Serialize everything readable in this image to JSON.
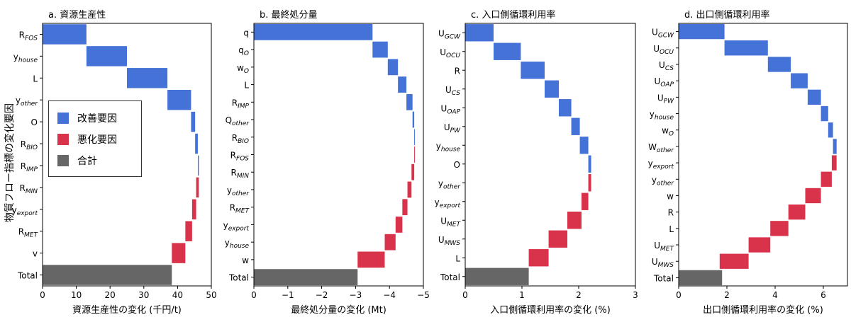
{
  "y_axis_label": "物質フロー指標の変化要因",
  "legend": [
    {
      "label": "改善要因",
      "color": "#4472d6"
    },
    {
      "label": "悪化要因",
      "color": "#d9334b"
    },
    {
      "label": "合計",
      "color": "#666666"
    }
  ],
  "chart_data": [
    {
      "type": "waterfall",
      "title": "a. 資源生産性",
      "xlabel": "資源生産性の変化 (千円/t)",
      "xlim": [
        0,
        50
      ],
      "xticks": [
        0,
        10,
        20,
        30,
        40,
        50
      ],
      "xtick_labels": [
        "0",
        "10",
        "20",
        "30",
        "40",
        "50"
      ],
      "factors": [
        {
          "label": "R",
          "sub": "FOS",
          "value": 13.0,
          "kind": "improve"
        },
        {
          "label": "y",
          "sub": "house",
          "value": 12.0,
          "kind": "improve"
        },
        {
          "label": "L",
          "sub": "",
          "value": 12.0,
          "kind": "improve"
        },
        {
          "label": "y",
          "sub": "other",
          "value": 7.0,
          "kind": "improve"
        },
        {
          "label": "O",
          "sub": "",
          "value": 1.2,
          "kind": "improve"
        },
        {
          "label": "R",
          "sub": "BIO",
          "value": 0.8,
          "kind": "improve"
        },
        {
          "label": "R",
          "sub": "IMP",
          "value": 0.3,
          "kind": "improve"
        },
        {
          "label": "R",
          "sub": "MIN",
          "value": -0.8,
          "kind": "worsen"
        },
        {
          "label": "y",
          "sub": "export",
          "value": -1.2,
          "kind": "worsen"
        },
        {
          "label": "R",
          "sub": "MET",
          "value": -2.0,
          "kind": "worsen"
        },
        {
          "label": "v",
          "sub": "",
          "value": -4.0,
          "kind": "worsen"
        }
      ],
      "total": {
        "label": "Total",
        "value": 38.3
      }
    },
    {
      "type": "waterfall",
      "title": "b. 最終処分量",
      "xlabel": "最終処分量の変化 (Mt)",
      "xlim": [
        0,
        -5
      ],
      "xticks": [
        0,
        -1,
        -2,
        -3,
        -4,
        -5
      ],
      "xtick_labels": [
        "0",
        "−1",
        "−2",
        "−3",
        "−4",
        "−5"
      ],
      "factors": [
        {
          "label": "q",
          "sub": "",
          "value": -3.5,
          "kind": "improve"
        },
        {
          "label": "q",
          "sub": "O",
          "value": -0.45,
          "kind": "improve"
        },
        {
          "label": "w",
          "sub": "O",
          "value": -0.3,
          "kind": "improve"
        },
        {
          "label": "L",
          "sub": "",
          "value": -0.25,
          "kind": "improve"
        },
        {
          "label": "R",
          "sub": "IMP",
          "value": -0.18,
          "kind": "improve"
        },
        {
          "label": "Q",
          "sub": "other",
          "value": -0.05,
          "kind": "improve"
        },
        {
          "label": "R",
          "sub": "BIO",
          "value": -0.02,
          "kind": "improve"
        },
        {
          "label": "R",
          "sub": "FOS",
          "value": 0.02,
          "kind": "worsen"
        },
        {
          "label": "R",
          "sub": "MIN",
          "value": 0.08,
          "kind": "worsen"
        },
        {
          "label": "y",
          "sub": "other",
          "value": 0.12,
          "kind": "worsen"
        },
        {
          "label": "R",
          "sub": "MET",
          "value": 0.15,
          "kind": "worsen"
        },
        {
          "label": "y",
          "sub": "export",
          "value": 0.2,
          "kind": "worsen"
        },
        {
          "label": "y",
          "sub": "house",
          "value": 0.32,
          "kind": "worsen"
        },
        {
          "label": "w",
          "sub": "",
          "value": 0.8,
          "kind": "worsen"
        }
      ],
      "total": {
        "label": "Total",
        "value": -3.06
      }
    },
    {
      "type": "waterfall",
      "title": "c. 入口側循環利用率",
      "xlabel": "入口側循環利用率の変化 (%)",
      "xlim": [
        0,
        3
      ],
      "xticks": [
        0,
        1,
        2,
        3
      ],
      "xtick_labels": [
        "0",
        "1",
        "2",
        "3"
      ],
      "factors": [
        {
          "label": "U",
          "sub": "GCW",
          "value": 0.5,
          "kind": "improve"
        },
        {
          "label": "U",
          "sub": "OCU",
          "value": 0.48,
          "kind": "improve"
        },
        {
          "label": "R",
          "sub": "",
          "value": 0.42,
          "kind": "improve"
        },
        {
          "label": "U",
          "sub": "CS",
          "value": 0.25,
          "kind": "improve"
        },
        {
          "label": "U",
          "sub": "OAP",
          "value": 0.22,
          "kind": "improve"
        },
        {
          "label": "U",
          "sub": "PW",
          "value": 0.15,
          "kind": "improve"
        },
        {
          "label": "y",
          "sub": "house",
          "value": 0.15,
          "kind": "improve"
        },
        {
          "label": "O",
          "sub": "",
          "value": 0.05,
          "kind": "improve"
        },
        {
          "label": "y",
          "sub": "other",
          "value": -0.05,
          "kind": "worsen"
        },
        {
          "label": "y",
          "sub": "export",
          "value": -0.12,
          "kind": "worsen"
        },
        {
          "label": "U",
          "sub": "MET",
          "value": -0.25,
          "kind": "worsen"
        },
        {
          "label": "U",
          "sub": "MWS",
          "value": -0.33,
          "kind": "worsen"
        },
        {
          "label": "L",
          "sub": "",
          "value": -0.35,
          "kind": "worsen"
        }
      ],
      "total": {
        "label": "Total",
        "value": 1.12
      }
    },
    {
      "type": "waterfall",
      "title": "d. 出口側循環利用率",
      "xlabel": "出口側循環利用率の変化 (%)",
      "xlim": [
        0,
        7
      ],
      "xticks": [
        0,
        2,
        4,
        6
      ],
      "xtick_labels": [
        "0",
        "2",
        "4",
        "6"
      ],
      "factors": [
        {
          "label": "U",
          "sub": "GCW",
          "value": 1.9,
          "kind": "improve"
        },
        {
          "label": "U",
          "sub": "OCU",
          "value": 1.8,
          "kind": "improve"
        },
        {
          "label": "U",
          "sub": "CS",
          "value": 0.95,
          "kind": "improve"
        },
        {
          "label": "U",
          "sub": "OAP",
          "value": 0.7,
          "kind": "improve"
        },
        {
          "label": "U",
          "sub": "PW",
          "value": 0.55,
          "kind": "improve"
        },
        {
          "label": "y",
          "sub": "house",
          "value": 0.3,
          "kind": "improve"
        },
        {
          "label": "w",
          "sub": "O",
          "value": 0.2,
          "kind": "improve"
        },
        {
          "label": "W",
          "sub": "other",
          "value": 0.15,
          "kind": "improve"
        },
        {
          "label": "y",
          "sub": "export",
          "value": -0.2,
          "kind": "worsen"
        },
        {
          "label": "y",
          "sub": "other",
          "value": -0.45,
          "kind": "worsen"
        },
        {
          "label": "w",
          "sub": "",
          "value": -0.65,
          "kind": "worsen"
        },
        {
          "label": "R",
          "sub": "",
          "value": -0.7,
          "kind": "worsen"
        },
        {
          "label": "L",
          "sub": "",
          "value": -0.75,
          "kind": "worsen"
        },
        {
          "label": "U",
          "sub": "MET",
          "value": -0.9,
          "kind": "worsen"
        },
        {
          "label": "U",
          "sub": "MWS",
          "value": -1.2,
          "kind": "worsen"
        }
      ],
      "total": {
        "label": "Total",
        "value": 1.8
      }
    }
  ]
}
